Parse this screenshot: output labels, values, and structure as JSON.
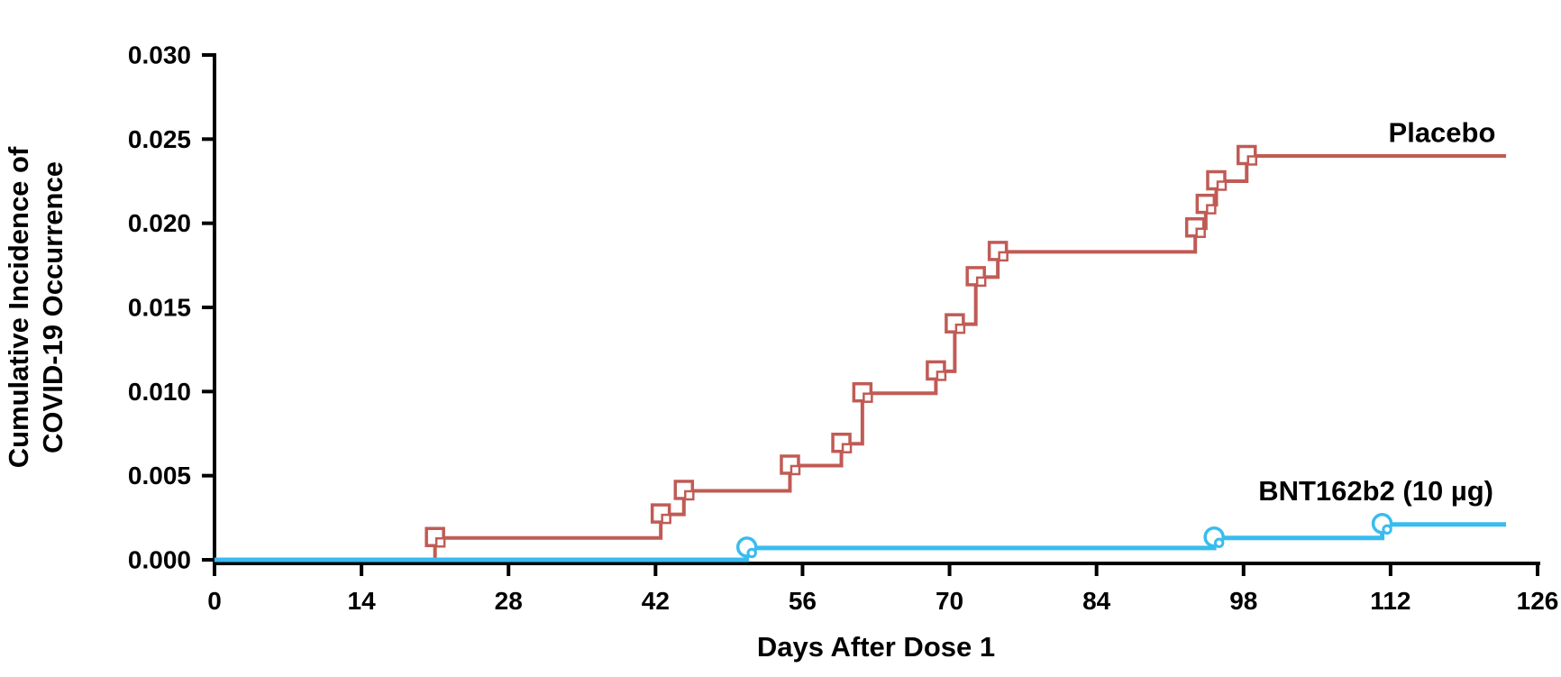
{
  "figure": {
    "background": "#ffffff",
    "text_color": "#000000",
    "axis_color": "#000000"
  },
  "chart_data": {
    "type": "line",
    "subtype": "kaplan-meier-step-curve",
    "title": "",
    "xlabel": "Days After Dose 1",
    "ylabel_line1": "Cumulative Incidence of",
    "ylabel_line2": "COVID-19 Occurrence",
    "xlim": [
      0,
      126
    ],
    "ylim": [
      0.0,
      0.03
    ],
    "x_ticks": [
      0,
      14,
      28,
      42,
      56,
      70,
      84,
      98,
      112,
      126
    ],
    "y_tick_labels": [
      "0.000",
      "0.005",
      "0.010",
      "0.015",
      "0.020",
      "0.025",
      "0.030"
    ],
    "grid": false,
    "legend_position": "end-of-line-labels",
    "series": [
      {
        "name": "Placebo",
        "color": "#C05B55",
        "marker": "square",
        "start": [
          0,
          0.0
        ],
        "end_day": 123,
        "events": [
          [
            21.0,
            0.0013
          ],
          [
            42.5,
            0.0027
          ],
          [
            44.7,
            0.0041
          ],
          [
            54.8,
            0.0056
          ],
          [
            59.7,
            0.0069
          ],
          [
            61.7,
            0.0099
          ],
          [
            68.7,
            0.0112
          ],
          [
            70.5,
            0.014
          ],
          [
            72.5,
            0.0168
          ],
          [
            74.6,
            0.0183
          ],
          [
            93.4,
            0.0197
          ],
          [
            94.4,
            0.0211
          ],
          [
            95.4,
            0.0225
          ],
          [
            98.3,
            0.024
          ]
        ],
        "label": "Placebo",
        "label_pos": {
          "day": 116.9,
          "value": 0.0254
        }
      },
      {
        "name": "BNT162b2 (10 µg)",
        "color": "#38BCF0",
        "marker": "circle",
        "start": [
          0,
          0.0
        ],
        "end_day": 123,
        "events": [
          [
            50.7,
            0.0007
          ],
          [
            95.2,
            0.0013
          ],
          [
            111.2,
            0.0021
          ]
        ],
        "label": "BNT162b2 (10 µg)",
        "label_pos": {
          "day": 110.6,
          "value": 0.0041
        }
      }
    ]
  }
}
